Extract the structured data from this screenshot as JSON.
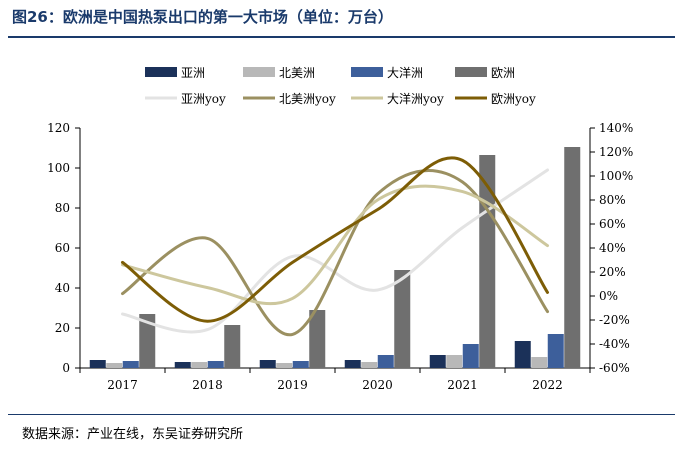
{
  "title": "图26：欧洲是中国热泵出口的第一大市场（单位：万台）",
  "source": "数据来源：产业在线，东吴证券研究所",
  "chart_data": {
    "type": "bar",
    "categories": [
      "2017",
      "2018",
      "2019",
      "2020",
      "2021",
      "2022"
    ],
    "ylim": [
      0,
      120
    ],
    "yticks": [
      "0",
      "20",
      "40",
      "60",
      "80",
      "100",
      "120"
    ],
    "y2lim": [
      -60,
      140
    ],
    "y2ticks": [
      "-60%",
      "-40%",
      "-20%",
      "0%",
      "20%",
      "40%",
      "60%",
      "80%",
      "100%",
      "120%",
      "140%"
    ],
    "series": [
      {
        "name": "亚洲",
        "kind": "bar",
        "color": "#1b3159",
        "values": [
          4.0,
          3.0,
          4.0,
          4.0,
          6.5,
          13.5
        ]
      },
      {
        "name": "北美洲",
        "kind": "bar",
        "color": "#b8b8b8",
        "values": [
          2.5,
          3.0,
          2.5,
          3.0,
          6.5,
          5.5
        ]
      },
      {
        "name": "大洋洲",
        "kind": "bar",
        "color": "#3d5f9b",
        "values": [
          3.5,
          3.5,
          3.5,
          6.5,
          12.0,
          17.0
        ]
      },
      {
        "name": "欧洲",
        "kind": "bar",
        "color": "#6f6f6f",
        "values": [
          27.0,
          21.5,
          29.0,
          49.0,
          106.5,
          110.5
        ]
      },
      {
        "name": "亚洲yoy",
        "kind": "line",
        "color": "#e3e3e3",
        "values": [
          -15,
          -28,
          33,
          5,
          57,
          105
        ]
      },
      {
        "name": "北美洲yoy",
        "kind": "line",
        "color": "#9b9061",
        "values": [
          2,
          48,
          -32,
          85,
          95,
          -13
        ]
      },
      {
        "name": "大洋洲yoy",
        "kind": "line",
        "color": "#cdc79d",
        "values": [
          26,
          7,
          -2,
          80,
          87,
          42
        ]
      },
      {
        "name": "欧洲yoy",
        "kind": "line",
        "color": "#7d5d06",
        "values": [
          28,
          -21,
          28,
          72,
          113,
          3
        ]
      }
    ]
  }
}
